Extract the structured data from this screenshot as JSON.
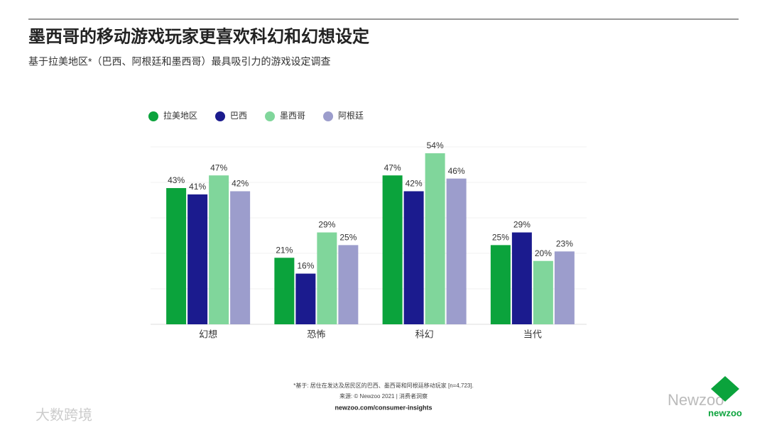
{
  "chart_data": {
    "type": "bar",
    "title": "墨西哥的移动游戏玩家更喜欢科幻和幻想设定",
    "subtitle": "基于拉美地区*（巴西、阿根廷和墨西哥）最具吸引力的游戏设定调查",
    "categories": [
      "幻想",
      "恐怖",
      "科幻",
      "当代"
    ],
    "series": [
      {
        "name": "拉美地区",
        "color": "#0ba33c",
        "values": [
          43,
          21,
          47,
          25
        ],
        "value_labels": [
          "43%",
          "21%",
          "47%",
          "25%"
        ]
      },
      {
        "name": "巴西",
        "color": "#1b1b8e",
        "values": [
          41,
          16,
          42,
          29
        ],
        "value_labels": [
          "41%",
          "16%",
          "42%",
          "29%"
        ]
      },
      {
        "name": "墨西哥",
        "color": "#80d69b",
        "values": [
          47,
          29,
          54,
          20
        ],
        "value_labels": [
          "47%",
          "29%",
          "54%",
          "20%"
        ]
      },
      {
        "name": "阿根廷",
        "color": "#9c9dcc",
        "values": [
          42,
          25,
          46,
          23
        ],
        "value_labels": [
          "42%",
          "25%",
          "46%",
          "23%"
        ]
      }
    ],
    "ylim": [
      0,
      56
    ],
    "legend": "top-left",
    "footnote": "*基于: 居住在发达及居民区的巴西、墨西哥和阿根廷移动玩家 [n=4,723].",
    "source": "来源: © Newzoo 2021 | 消费者洞察",
    "url": "newzoo.com/consumer-insights"
  },
  "watermarks": {
    "left": "大数跨境",
    "right": "Newzoo",
    "logo": "newzoo"
  }
}
